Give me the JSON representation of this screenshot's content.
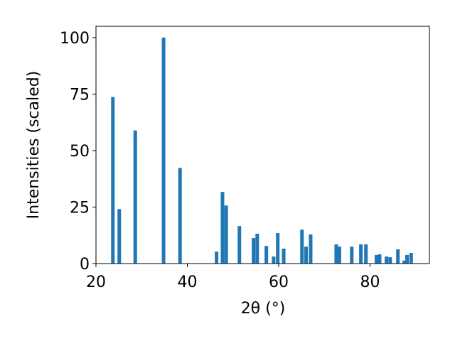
{
  "chart_data": {
    "type": "bar",
    "x_label": "2θ (°)",
    "y_label": "Intensities (scaled)",
    "color": "#1f77b4",
    "x": [
      23.7,
      25.1,
      28.6,
      34.8,
      38.4,
      46.4,
      47.7,
      48.5,
      51.4,
      54.5,
      55.3,
      57.3,
      58.9,
      59.8,
      61.1,
      65.1,
      66.0,
      67.0,
      72.6,
      73.3,
      76.0,
      78.0,
      79.1,
      81.4,
      82.1,
      83.6,
      84.4,
      86.1,
      87.5,
      88.1,
      89.0
    ],
    "values": [
      73.7,
      24.1,
      58.9,
      100,
      42.3,
      5.3,
      31.7,
      25.7,
      16.6,
      11.3,
      13.2,
      7.8,
      3.1,
      13.5,
      6.6,
      15.0,
      7.5,
      12.9,
      8.5,
      7.5,
      7.5,
      8.5,
      8.5,
      3.8,
      4.1,
      3.1,
      2.8,
      6.3,
      1.3,
      3.8,
      4.7
    ],
    "xlim": [
      20,
      93
    ],
    "ylim": [
      0,
      105
    ],
    "xticks": [
      20,
      40,
      60,
      80
    ],
    "yticks": [
      0,
      25,
      50,
      75,
      100
    ]
  }
}
